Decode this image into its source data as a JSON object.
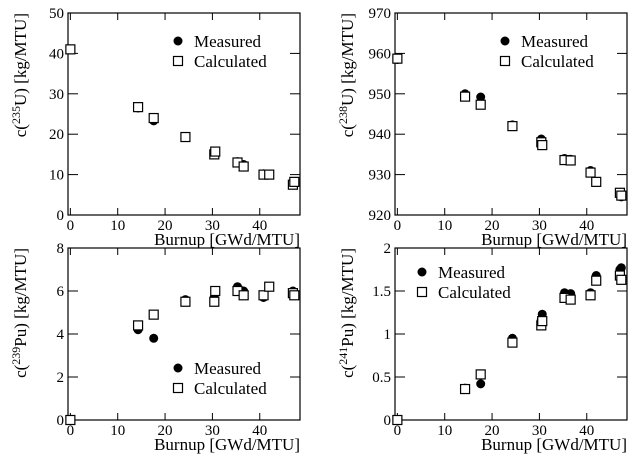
{
  "chart_data": [
    {
      "type": "scatter",
      "ylabel": [
        "c(",
        "235",
        "U) [kg/MTU]"
      ],
      "xlabel": "Burnup [GWd/MTU]",
      "x": [
        0,
        14.3,
        17.6,
        24.3,
        30.4,
        30.6,
        35.3,
        36.6,
        40.8,
        42.0,
        47.0,
        47.3
      ],
      "series": [
        {
          "name": "Measured",
          "color": "#000000",
          "marker": "circle",
          "values": [
            41,
            26.5,
            23.3,
            19.2,
            15.5,
            15.3,
            13.2,
            12.5,
            10.2,
            10.1,
            8.0,
            7.8
          ]
        },
        {
          "name": "Calculated",
          "color": "#000000",
          "marker": "open-square",
          "values": [
            41,
            26.7,
            24.0,
            19.3,
            15.0,
            15.7,
            13.0,
            12.0,
            10.0,
            10.0,
            7.5,
            8.2
          ]
        }
      ],
      "xlim": [
        -0.5,
        48.5
      ],
      "xticks": [
        0,
        10,
        20,
        30,
        40
      ],
      "ylim": [
        0,
        50
      ],
      "yticks": [
        0,
        10,
        20,
        30,
        40,
        50
      ],
      "legend": "upper right"
    },
    {
      "type": "scatter",
      "ylabel": [
        "c(",
        "238",
        "U) [kg/MTU]"
      ],
      "xlabel": "Burnup [GWd/MTU]",
      "x": [
        0,
        14.3,
        17.6,
        24.3,
        30.4,
        30.6,
        35.3,
        36.6,
        40.8,
        42.0,
        47.0,
        47.3
      ],
      "series": [
        {
          "name": "Measured",
          "color": "#000000",
          "marker": "circle",
          "values": [
            958.5,
            950,
            949.2,
            942.3,
            938.8,
            937.8,
            934,
            933.8,
            931,
            928.3,
            925,
            924.5
          ]
        },
        {
          "name": "Calculated",
          "color": "#000000",
          "marker": "open-square",
          "values": [
            958.7,
            949.3,
            947.3,
            942,
            938,
            937.3,
            933.6,
            933.5,
            930.5,
            928.2,
            925.5,
            924.8
          ]
        }
      ],
      "xlim": [
        -0.5,
        48.5
      ],
      "xticks": [
        0,
        10,
        20,
        30,
        40
      ],
      "ylim": [
        920,
        970
      ],
      "yticks": [
        920,
        930,
        940,
        950,
        960,
        970
      ],
      "legend": "upper right"
    },
    {
      "type": "scatter",
      "ylabel": [
        "c(",
        "239",
        "Pu) [kg/MTU]"
      ],
      "xlabel": "Burnup [GWd/MTU]",
      "x": [
        0,
        14.3,
        17.6,
        24.3,
        30.4,
        30.6,
        35.3,
        36.6,
        40.8,
        42.0,
        47.0,
        47.3
      ],
      "series": [
        {
          "name": "Measured",
          "color": "#000000",
          "marker": "circle",
          "values": [
            0,
            4.2,
            3.8,
            5.6,
            5.7,
            5.9,
            6.2,
            6.0,
            5.7,
            6.2,
            6.0,
            5.9
          ]
        },
        {
          "name": "Calculated",
          "color": "#000000",
          "marker": "open-square",
          "values": [
            0,
            4.4,
            4.9,
            5.5,
            5.5,
            6.0,
            6.0,
            5.8,
            5.8,
            6.2,
            5.9,
            5.8
          ]
        }
      ],
      "xlim": [
        -0.5,
        48.5
      ],
      "xticks": [
        0,
        10,
        20,
        30,
        40
      ],
      "ylim": [
        0,
        8
      ],
      "yticks": [
        0,
        2,
        4,
        6,
        8
      ],
      "legend": "lower right"
    },
    {
      "type": "scatter",
      "ylabel": [
        "c(",
        "241",
        "Pu) [kg/MTU]"
      ],
      "xlabel": "Burnup [GWd/MTU]",
      "x": [
        0,
        14.3,
        17.6,
        24.3,
        30.4,
        30.6,
        35.3,
        36.6,
        40.8,
        42.0,
        47.0,
        47.3
      ],
      "series": [
        {
          "name": "Measured",
          "color": "#000000",
          "marker": "circle",
          "values": [
            0,
            0.37,
            0.42,
            0.95,
            1.17,
            1.23,
            1.48,
            1.47,
            1.48,
            1.68,
            1.75,
            1.77
          ]
        },
        {
          "name": "Calculated",
          "color": "#000000",
          "marker": "open-square",
          "values": [
            0,
            0.36,
            0.53,
            0.9,
            1.1,
            1.15,
            1.42,
            1.4,
            1.45,
            1.62,
            1.68,
            1.63
          ]
        }
      ],
      "xlim": [
        -0.5,
        48.5
      ],
      "xticks": [
        0,
        10,
        20,
        30,
        40
      ],
      "ylim": [
        0,
        2
      ],
      "yticks": [
        0,
        0.5,
        1,
        1.5,
        2
      ],
      "legend": "upper left"
    }
  ]
}
